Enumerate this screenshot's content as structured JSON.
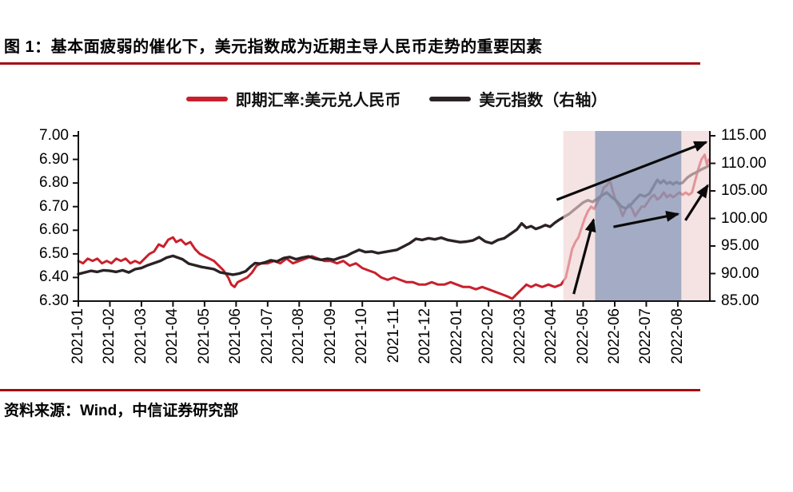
{
  "page": {
    "title": "图 1：基本面疲弱的催化下，美元指数成为近期主导人民币走势的重要因素",
    "source": "资料来源：Wind，中信证券研究部"
  },
  "colors": {
    "rule_red": "#A30D10",
    "spot_rate_line": "#C9202B",
    "dollar_index_line": "#2B2225",
    "region_pink": "#EFD3D3",
    "region_blue": "#5F80AC",
    "axis": "#111111",
    "arrow": "#0A0A0A"
  },
  "legend": {
    "items": [
      {
        "label": "即期汇率:美元兑人民币",
        "color": "#C9202B"
      },
      {
        "label": "美元指数（右轴）",
        "color": "#2B2225"
      }
    ]
  },
  "chart_data": {
    "type": "line",
    "title": "图 1：基本面疲弱的催化下，美元指数成为近期主导人民币走势的重要因素",
    "x_axis": {
      "labels": [
        "2021-01",
        "2021-02",
        "2021-03",
        "2021-04",
        "2021-05",
        "2021-06",
        "2021-07",
        "2021-08",
        "2021-09",
        "2021-10",
        "2021-11",
        "2021-12",
        "2022-01",
        "2022-02",
        "2022-03",
        "2022-04",
        "2022-05",
        "2022-06",
        "2022-07",
        "2022-08"
      ]
    },
    "left_axis": {
      "ticks": [
        "7.00",
        "6.90",
        "6.80",
        "6.70",
        "6.60",
        "6.50",
        "6.40",
        "6.30"
      ],
      "min": 6.3,
      "max": 7.0
    },
    "right_axis": {
      "ticks": [
        "115.00",
        "110.00",
        "105.00",
        "100.00",
        "95.00",
        "90.00",
        "85.00"
      ],
      "min": 85.0,
      "max": 115.0
    },
    "grid": false,
    "legend_position": "top-center",
    "series": [
      {
        "name": "即期汇率:美元兑人民币",
        "axis": "left",
        "color": "#C9202B",
        "points": [
          [
            0,
            6.47
          ],
          [
            0.15,
            6.46
          ],
          [
            0.3,
            6.48
          ],
          [
            0.45,
            6.47
          ],
          [
            0.6,
            6.48
          ],
          [
            0.75,
            6.46
          ],
          [
            0.9,
            6.47
          ],
          [
            1.05,
            6.46
          ],
          [
            1.2,
            6.48
          ],
          [
            1.35,
            6.47
          ],
          [
            1.5,
            6.48
          ],
          [
            1.65,
            6.46
          ],
          [
            1.8,
            6.47
          ],
          [
            1.95,
            6.46
          ],
          [
            2.1,
            6.48
          ],
          [
            2.25,
            6.5
          ],
          [
            2.4,
            6.51
          ],
          [
            2.55,
            6.54
          ],
          [
            2.7,
            6.53
          ],
          [
            2.85,
            6.56
          ],
          [
            3.0,
            6.57
          ],
          [
            3.1,
            6.55
          ],
          [
            3.25,
            6.56
          ],
          [
            3.4,
            6.54
          ],
          [
            3.55,
            6.55
          ],
          [
            3.7,
            6.52
          ],
          [
            3.85,
            6.5
          ],
          [
            4.0,
            6.49
          ],
          [
            4.15,
            6.48
          ],
          [
            4.3,
            6.47
          ],
          [
            4.45,
            6.45
          ],
          [
            4.6,
            6.43
          ],
          [
            4.75,
            6.4
          ],
          [
            4.85,
            6.37
          ],
          [
            4.95,
            6.36
          ],
          [
            5.05,
            6.38
          ],
          [
            5.2,
            6.39
          ],
          [
            5.35,
            6.4
          ],
          [
            5.5,
            6.42
          ],
          [
            5.65,
            6.45
          ],
          [
            5.8,
            6.46
          ],
          [
            6.0,
            6.46
          ],
          [
            6.2,
            6.47
          ],
          [
            6.4,
            6.46
          ],
          [
            6.6,
            6.48
          ],
          [
            6.8,
            6.46
          ],
          [
            7.0,
            6.47
          ],
          [
            7.2,
            6.48
          ],
          [
            7.4,
            6.49
          ],
          [
            7.6,
            6.48
          ],
          [
            7.8,
            6.47
          ],
          [
            8.0,
            6.47
          ],
          [
            8.2,
            6.46
          ],
          [
            8.4,
            6.47
          ],
          [
            8.6,
            6.45
          ],
          [
            8.8,
            6.46
          ],
          [
            9.0,
            6.44
          ],
          [
            9.2,
            6.43
          ],
          [
            9.4,
            6.42
          ],
          [
            9.6,
            6.4
          ],
          [
            9.8,
            6.39
          ],
          [
            10.0,
            6.4
          ],
          [
            10.2,
            6.39
          ],
          [
            10.4,
            6.38
          ],
          [
            10.6,
            6.38
          ],
          [
            10.8,
            6.37
          ],
          [
            11.0,
            6.37
          ],
          [
            11.2,
            6.38
          ],
          [
            11.4,
            6.37
          ],
          [
            11.6,
            6.37
          ],
          [
            11.8,
            6.38
          ],
          [
            12.0,
            6.37
          ],
          [
            12.2,
            6.36
          ],
          [
            12.4,
            6.36
          ],
          [
            12.6,
            6.35
          ],
          [
            12.8,
            6.36
          ],
          [
            13.0,
            6.35
          ],
          [
            13.2,
            6.34
          ],
          [
            13.4,
            6.33
          ],
          [
            13.6,
            6.32
          ],
          [
            13.75,
            6.31
          ],
          [
            13.9,
            6.33
          ],
          [
            14.05,
            6.35
          ],
          [
            14.2,
            6.37
          ],
          [
            14.35,
            6.36
          ],
          [
            14.5,
            6.37
          ],
          [
            14.7,
            6.36
          ],
          [
            14.9,
            6.37
          ],
          [
            15.1,
            6.36
          ],
          [
            15.3,
            6.37
          ],
          [
            15.45,
            6.4
          ],
          [
            15.55,
            6.46
          ],
          [
            15.65,
            6.52
          ],
          [
            15.75,
            6.55
          ],
          [
            15.85,
            6.57
          ],
          [
            15.95,
            6.61
          ],
          [
            16.05,
            6.65
          ],
          [
            16.15,
            6.68
          ],
          [
            16.25,
            6.7
          ],
          [
            16.35,
            6.69
          ],
          [
            16.45,
            6.72
          ],
          [
            16.55,
            6.74
          ],
          [
            16.65,
            6.78
          ],
          [
            16.75,
            6.79
          ],
          [
            16.85,
            6.81
          ],
          [
            16.95,
            6.76
          ],
          [
            17.05,
            6.72
          ],
          [
            17.15,
            6.7
          ],
          [
            17.25,
            6.66
          ],
          [
            17.35,
            6.69
          ],
          [
            17.45,
            6.71
          ],
          [
            17.55,
            6.69
          ],
          [
            17.65,
            6.66
          ],
          [
            17.75,
            6.68
          ],
          [
            17.85,
            6.7
          ],
          [
            17.95,
            6.7
          ],
          [
            18.05,
            6.72
          ],
          [
            18.15,
            6.74
          ],
          [
            18.25,
            6.75
          ],
          [
            18.35,
            6.73
          ],
          [
            18.45,
            6.74
          ],
          [
            18.55,
            6.76
          ],
          [
            18.65,
            6.74
          ],
          [
            18.75,
            6.75
          ],
          [
            18.85,
            6.74
          ],
          [
            18.95,
            6.75
          ],
          [
            19.05,
            6.76
          ],
          [
            19.15,
            6.75
          ],
          [
            19.25,
            6.76
          ],
          [
            19.35,
            6.75
          ],
          [
            19.45,
            6.76
          ],
          [
            19.55,
            6.81
          ],
          [
            19.65,
            6.86
          ],
          [
            19.75,
            6.9
          ],
          [
            19.85,
            6.92
          ],
          [
            19.92,
            6.88
          ],
          [
            19.98,
            6.9
          ]
        ]
      },
      {
        "name": "美元指数（右轴）",
        "axis": "right",
        "color": "#2B2225",
        "points": [
          [
            0,
            89.9
          ],
          [
            0.2,
            90.2
          ],
          [
            0.4,
            90.5
          ],
          [
            0.6,
            90.3
          ],
          [
            0.8,
            90.6
          ],
          [
            1.0,
            90.5
          ],
          [
            1.2,
            90.3
          ],
          [
            1.4,
            90.6
          ],
          [
            1.6,
            90.2
          ],
          [
            1.8,
            90.8
          ],
          [
            2.0,
            91.0
          ],
          [
            2.2,
            91.5
          ],
          [
            2.4,
            91.9
          ],
          [
            2.6,
            92.3
          ],
          [
            2.8,
            92.9
          ],
          [
            3.0,
            93.2
          ],
          [
            3.15,
            92.9
          ],
          [
            3.3,
            92.6
          ],
          [
            3.5,
            91.8
          ],
          [
            3.7,
            91.5
          ],
          [
            3.9,
            91.2
          ],
          [
            4.1,
            91.0
          ],
          [
            4.3,
            90.8
          ],
          [
            4.5,
            90.2
          ],
          [
            4.7,
            90.0
          ],
          [
            4.9,
            89.8
          ],
          [
            5.1,
            90.0
          ],
          [
            5.3,
            90.4
          ],
          [
            5.45,
            91.2
          ],
          [
            5.6,
            91.9
          ],
          [
            5.75,
            91.8
          ],
          [
            5.9,
            92.0
          ],
          [
            6.1,
            92.4
          ],
          [
            6.3,
            92.2
          ],
          [
            6.5,
            92.8
          ],
          [
            6.7,
            93.0
          ],
          [
            6.9,
            92.6
          ],
          [
            7.1,
            92.9
          ],
          [
            7.3,
            93.1
          ],
          [
            7.5,
            92.7
          ],
          [
            7.7,
            92.5
          ],
          [
            7.9,
            92.7
          ],
          [
            8.1,
            92.5
          ],
          [
            8.3,
            92.9
          ],
          [
            8.5,
            93.2
          ],
          [
            8.7,
            93.8
          ],
          [
            8.9,
            94.3
          ],
          [
            9.1,
            93.9
          ],
          [
            9.3,
            94.0
          ],
          [
            9.5,
            93.7
          ],
          [
            9.7,
            93.9
          ],
          [
            9.9,
            94.1
          ],
          [
            10.1,
            94.3
          ],
          [
            10.3,
            94.9
          ],
          [
            10.5,
            95.5
          ],
          [
            10.7,
            96.3
          ],
          [
            10.9,
            96.1
          ],
          [
            11.1,
            96.4
          ],
          [
            11.3,
            96.2
          ],
          [
            11.5,
            96.5
          ],
          [
            11.7,
            96.1
          ],
          [
            11.9,
            95.9
          ],
          [
            12.1,
            95.7
          ],
          [
            12.3,
            95.8
          ],
          [
            12.5,
            96.0
          ],
          [
            12.7,
            96.6
          ],
          [
            12.9,
            95.8
          ],
          [
            13.1,
            95.5
          ],
          [
            13.3,
            96.1
          ],
          [
            13.5,
            96.4
          ],
          [
            13.7,
            97.2
          ],
          [
            13.9,
            98.0
          ],
          [
            14.05,
            99.1
          ],
          [
            14.2,
            98.3
          ],
          [
            14.35,
            98.6
          ],
          [
            14.5,
            98.1
          ],
          [
            14.65,
            98.4
          ],
          [
            14.8,
            98.8
          ],
          [
            14.95,
            98.5
          ],
          [
            15.1,
            99.2
          ],
          [
            15.25,
            99.8
          ],
          [
            15.4,
            100.3
          ],
          [
            15.55,
            100.8
          ],
          [
            15.7,
            101.5
          ],
          [
            15.85,
            102.2
          ],
          [
            16.0,
            102.9
          ],
          [
            16.15,
            103.3
          ],
          [
            16.3,
            103.0
          ],
          [
            16.45,
            103.6
          ],
          [
            16.6,
            104.2
          ],
          [
            16.75,
            104.7
          ],
          [
            16.9,
            103.9
          ],
          [
            17.05,
            103.2
          ],
          [
            17.2,
            102.2
          ],
          [
            17.35,
            101.8
          ],
          [
            17.5,
            102.4
          ],
          [
            17.65,
            103.4
          ],
          [
            17.8,
            104.3
          ],
          [
            17.95,
            104.0
          ],
          [
            18.1,
            104.5
          ],
          [
            18.25,
            106.0
          ],
          [
            18.35,
            107.0
          ],
          [
            18.45,
            106.4
          ],
          [
            18.55,
            106.9
          ],
          [
            18.65,
            106.3
          ],
          [
            18.75,
            106.6
          ],
          [
            18.85,
            106.2
          ],
          [
            18.95,
            106.6
          ],
          [
            19.05,
            106.3
          ],
          [
            19.15,
            106.5
          ],
          [
            19.3,
            107.4
          ],
          [
            19.45,
            108.0
          ],
          [
            19.6,
            108.4
          ],
          [
            19.75,
            108.9
          ],
          [
            19.9,
            109.3
          ],
          [
            19.98,
            109.6
          ]
        ]
      }
    ],
    "regions": [
      {
        "name": "highlight-pink",
        "from_month": 15.37,
        "to_month": 20.0,
        "color_key": "region_pink",
        "opacity": 0.65
      },
      {
        "name": "highlight-blue",
        "from_month": 16.38,
        "to_month": 19.11,
        "color_key": "region_blue",
        "opacity": 0.55
      }
    ],
    "annotations": {
      "arrows": [
        {
          "from": [
            15.16,
            6.729
          ],
          "to": [
            19.9,
            6.973
          ]
        },
        {
          "from": [
            15.7,
            6.33
          ],
          "to": [
            16.33,
            6.645
          ]
        },
        {
          "from": [
            16.96,
            6.614
          ],
          "to": [
            19.01,
            6.669
          ]
        },
        {
          "from": [
            19.24,
            6.642
          ],
          "to": [
            19.95,
            6.79
          ]
        }
      ]
    }
  }
}
